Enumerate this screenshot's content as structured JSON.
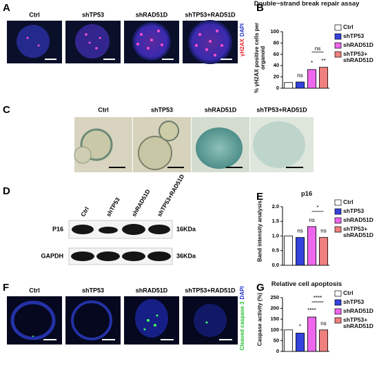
{
  "panel_labels": [
    "A",
    "B",
    "C",
    "D",
    "E",
    "F",
    "G"
  ],
  "panel_a": {
    "columns": [
      "Ctrl",
      "shTP53",
      "shRAD51D",
      "shTP53+RAD51D"
    ],
    "stain": [
      "γH2AX",
      "DAPI"
    ]
  },
  "panel_c": {
    "columns": [
      "Ctrl",
      "shTP53",
      "shRAD51D",
      "shTP53+RAD51D"
    ]
  },
  "panel_d": {
    "lanes": [
      "Ctrl",
      "shTP53",
      "shRAD51D",
      "shTP53+RAD51D"
    ],
    "rows": [
      "P16",
      "GAPDH"
    ],
    "sizes": [
      "16KDa",
      "36KDa"
    ]
  },
  "panel_f": {
    "columns": [
      "Ctrl",
      "shTP53",
      "shRAD51D",
      "shTP53+RAD51D"
    ],
    "stain": [
      "Cleaved caspase 3",
      "DAPI"
    ]
  },
  "chart_data": [
    {
      "type": "bar",
      "title": "Double−strand break repair assay",
      "y_label": "% γH2AX positive cells per organoid",
      "categories": [
        "Ctrl",
        "shTP53",
        "shRAD51D",
        "shTP53+ shRAD51D"
      ],
      "values": [
        10,
        11,
        33,
        37
      ],
      "colors": [
        "#ffffff",
        "#3344dd",
        "#ee66ee",
        "#f08080"
      ],
      "ylim": [
        0,
        100
      ],
      "yticks": [
        0,
        20,
        40,
        60,
        80,
        100
      ],
      "annotations": [
        null,
        "ns",
        "*",
        "**"
      ],
      "brackets": [
        {
          "text": "ns",
          "between": [
            "shRAD51D",
            "shTP53+ shRAD51D"
          ]
        }
      ],
      "legend": "right"
    },
    {
      "type": "bar",
      "title": "p16",
      "y_label": "Band intensity analysis",
      "categories": [
        "Ctrl",
        "shTP53",
        "shRAD51D",
        "shTP53+ shRAD51D"
      ],
      "values": [
        1.0,
        0.95,
        1.32,
        0.95
      ],
      "colors": [
        "#ffffff",
        "#3344dd",
        "#ee66ee",
        "#f08080"
      ],
      "ylim": [
        0,
        2
      ],
      "yticks": [
        {
          "value": 0,
          "label": "0.0"
        },
        {
          "value": 0.5,
          "label": "0.5"
        },
        {
          "value": 1,
          "label": "1.0"
        },
        {
          "value": 1.5,
          "label": "1.5"
        },
        {
          "value": 2,
          "label": "2.0"
        }
      ],
      "annotations": [
        null,
        "ns",
        "ns",
        "ns"
      ],
      "brackets": [
        {
          "text": "*",
          "between": [
            "shRAD51D",
            "shTP53+ shRAD51D"
          ]
        }
      ],
      "legend": "right"
    },
    {
      "type": "bar",
      "title": "Relative cell apoptosis",
      "y_label": "Caspase activity (%)",
      "categories": [
        "Ctrl",
        "shTP53",
        "shRAD51D",
        "shTP53+ shRAD51D"
      ],
      "values": [
        100,
        85,
        160,
        100
      ],
      "colors": [
        "#ffffff",
        "#3344dd",
        "#ee66ee",
        "#f08080"
      ],
      "ylim": [
        0,
        250
      ],
      "yticks": [
        0,
        50,
        100,
        150,
        200,
        250
      ],
      "annotations": [
        null,
        "*",
        "****",
        "ns"
      ],
      "brackets": [
        {
          "text": "****",
          "between": [
            "shRAD51D",
            "shTP53+ shRAD51D"
          ]
        }
      ],
      "legend": "right"
    }
  ]
}
